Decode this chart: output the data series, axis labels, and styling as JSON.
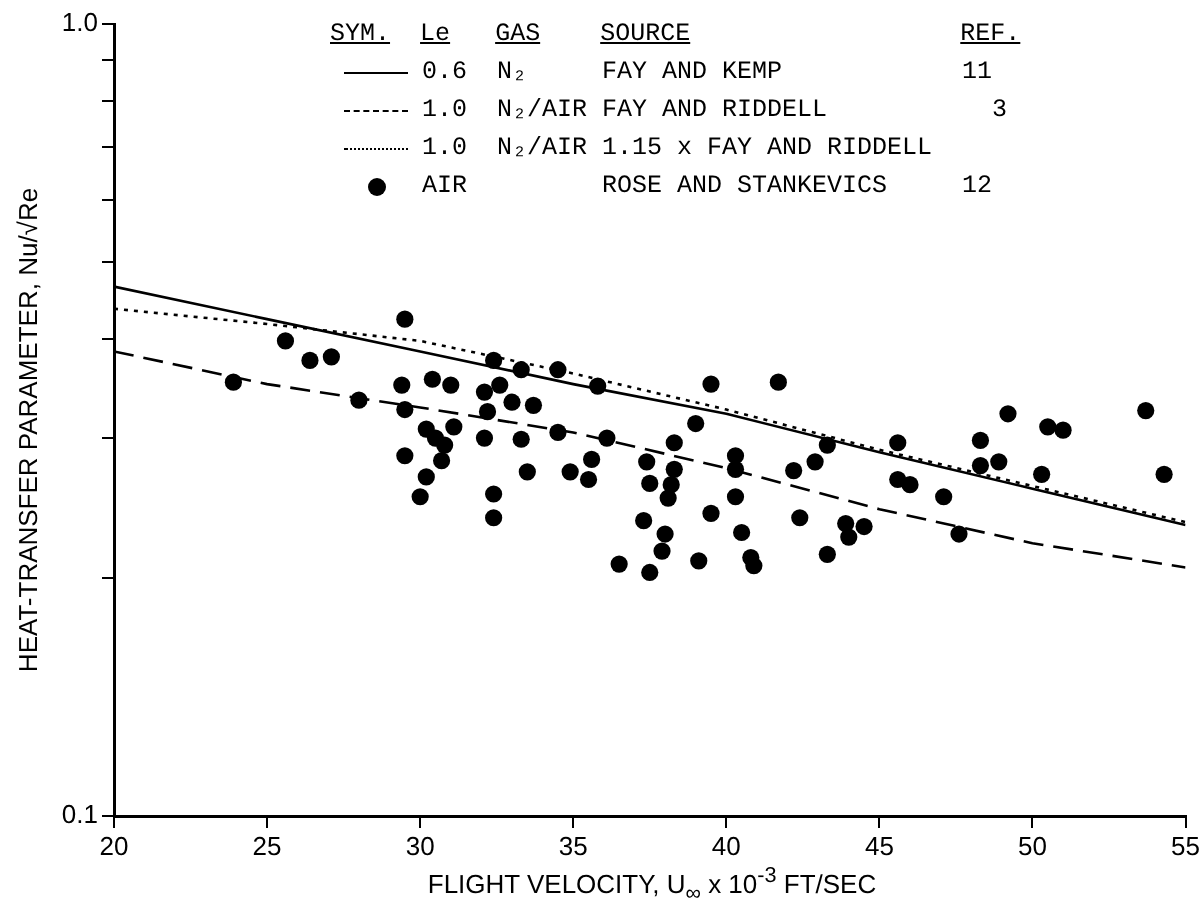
{
  "chart_data": {
    "type": "scatter",
    "xlabel": "FLIGHT VELOCITY, U$_{∞}$ x 10$^{-3}$ FT/SEC",
    "ylabel": "HEAT-TRANSFER PARAMETER, Nu/√Re",
    "legend_title": "SYM.  Le   GAS    SOURCE                  REF.",
    "legend": "top",
    "grid": false,
    "log": "y",
    "xlim": [
      20,
      55
    ],
    "xticks": [
      20,
      25,
      30,
      35,
      40,
      45,
      50,
      55
    ],
    "ylim": [
      0.1,
      1
    ],
    "yticks": [
      0.1,
      {
        "value": 0.2,
        "label": null
      },
      {
        "value": 0.3,
        "label": null
      },
      {
        "value": 0.4,
        "label": null
      },
      {
        "value": 0.5,
        "label": null
      },
      {
        "value": 0.6,
        "label": null
      },
      {
        "value": 0.7,
        "label": null
      },
      {
        "value": 0.8,
        "label": null
      },
      {
        "value": 0.9,
        "label": null
      },
      {
        "value": 1,
        "label": "1.0"
      }
    ],
    "series": [
      {
        "name": "0.6  N₂     FAY AND KEMP            11",
        "type": "line",
        "color": "#000000",
        "marker": "none",
        "line_style": "solid",
        "x": [
          20,
          25,
          30,
          35,
          40,
          45,
          50,
          55
        ],
        "values": [
          0.466,
          0.424,
          0.386,
          0.351,
          0.322,
          0.288,
          0.259,
          0.233
        ]
      },
      {
        "name": "1.0  N₂/AIR FAY AND RIDDELL           3",
        "type": "line",
        "color": "#000000",
        "marker": "none",
        "line_style": "dashed",
        "x": [
          20,
          25,
          30,
          35,
          40,
          45,
          50,
          55
        ],
        "values": [
          0.386,
          0.351,
          0.328,
          0.305,
          0.275,
          0.244,
          0.221,
          0.206
        ]
      },
      {
        "name": "1.0  N₂/AIR 1.15 x FAY AND RIDDELL",
        "type": "line",
        "color": "#000000",
        "marker": "none",
        "line_style": "dotted",
        "x": [
          20,
          25,
          30,
          35,
          40,
          45,
          50,
          55
        ],
        "values": [
          0.437,
          0.418,
          0.398,
          0.362,
          0.326,
          0.29,
          0.261,
          0.235
        ]
      },
      {
        "name": "AIR         ROSE AND STANKEVICS     12",
        "type": "scatter",
        "color": "#000000",
        "marker": "circle",
        "x": [
          23.9,
          25.6,
          26.4,
          27.1,
          28.0,
          29.5,
          29.4,
          29.5,
          29.5,
          30.2,
          30.0,
          30.2,
          30.4,
          31.0,
          31.1,
          30.5,
          30.8,
          30.7,
          32.1,
          32.4,
          32.6,
          32.2,
          32.1,
          32.4,
          32.4,
          33.3,
          33.0,
          33.7,
          33.3,
          33.5,
          34.5,
          34.5,
          34.9,
          35.6,
          35.5,
          35.8,
          36.1,
          36.5,
          37.3,
          37.5,
          37.4,
          37.5,
          38.0,
          37.9,
          38.1,
          38.3,
          38.3,
          39.5,
          41.7,
          39.0,
          38.2,
          39.1,
          40.3,
          40.3,
          40.3,
          39.5,
          40.5,
          40.8,
          40.9,
          42.2,
          42.4,
          42.9,
          43.3,
          43.3,
          43.9,
          44.0,
          44.5,
          45.6,
          45.6,
          46.0,
          47.1,
          47.6,
          48.3,
          48.3,
          48.9,
          49.2,
          50.3,
          50.5,
          51.0,
          53.7,
          54.3
        ],
        "values": [
          0.353,
          0.398,
          0.376,
          0.38,
          0.335,
          0.424,
          0.35,
          0.326,
          0.285,
          0.268,
          0.253,
          0.308,
          0.356,
          0.35,
          0.31,
          0.3,
          0.294,
          0.281,
          0.343,
          0.376,
          0.35,
          0.324,
          0.3,
          0.255,
          0.238,
          0.366,
          0.333,
          0.33,
          0.299,
          0.272,
          0.366,
          0.305,
          0.272,
          0.282,
          0.266,
          0.349,
          0.3,
          0.208,
          0.236,
          0.203,
          0.28,
          0.263,
          0.227,
          0.216,
          0.252,
          0.274,
          0.296,
          0.351,
          0.353,
          0.313,
          0.262,
          0.21,
          0.285,
          0.274,
          0.253,
          0.241,
          0.228,
          0.212,
          0.207,
          0.273,
          0.238,
          0.28,
          0.294,
          0.214,
          0.234,
          0.225,
          0.232,
          0.296,
          0.266,
          0.262,
          0.253,
          0.227,
          0.298,
          0.277,
          0.28,
          0.322,
          0.27,
          0.31,
          0.307,
          0.325,
          0.27
        ]
      }
    ]
  }
}
